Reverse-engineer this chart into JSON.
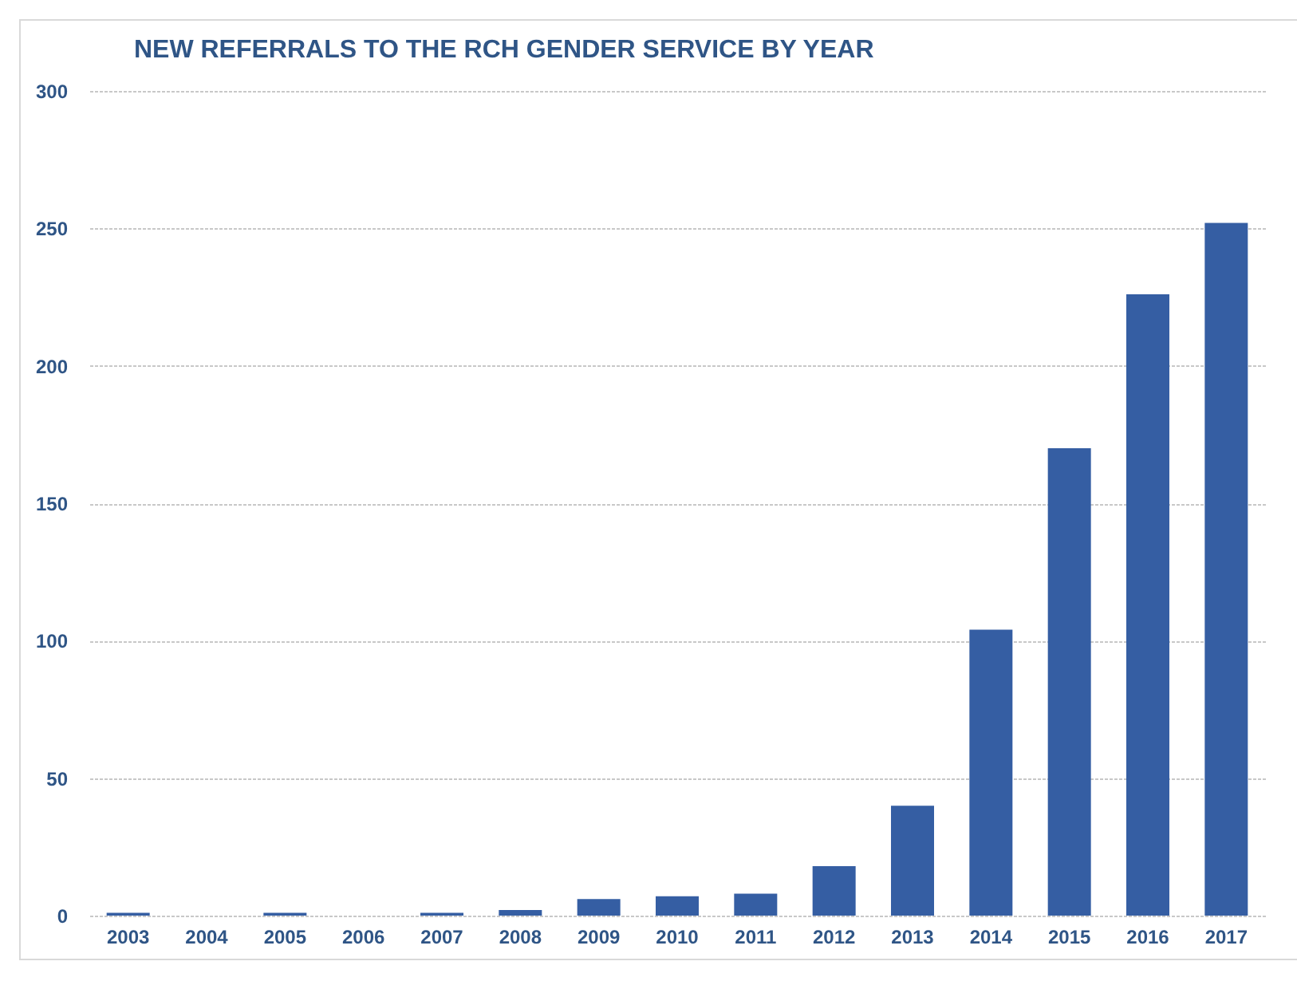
{
  "chart_data": {
    "type": "bar",
    "title": "NEW REFERRALS TO THE RCH GENDER SERVICE BY YEAR",
    "categories": [
      "2003",
      "2004",
      "2005",
      "2006",
      "2007",
      "2008",
      "2009",
      "2010",
      "2011",
      "2012",
      "2013",
      "2014",
      "2015",
      "2016",
      "2017"
    ],
    "values": [
      1,
      0,
      1,
      0,
      1,
      2,
      6,
      7,
      8,
      18,
      40,
      104,
      170,
      226,
      252
    ],
    "color": "#355ea3",
    "ylim": [
      0,
      300
    ],
    "yticks": [
      0,
      50,
      100,
      150,
      200,
      250,
      300
    ],
    "grid": "y"
  }
}
